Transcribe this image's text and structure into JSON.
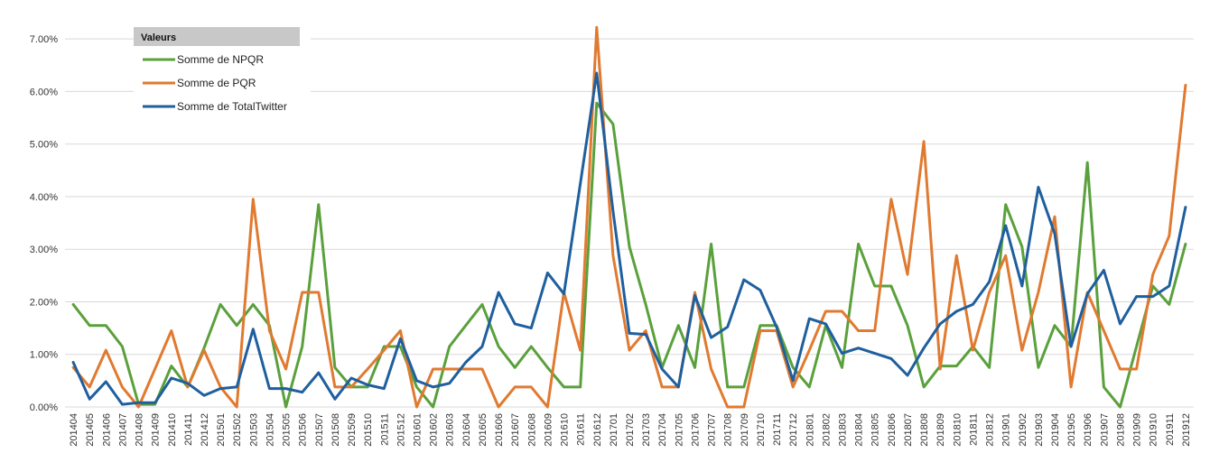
{
  "chart_data": {
    "type": "line",
    "y_format": "percent_2dp",
    "ylim": [
      0,
      7.5
    ],
    "y_ticks": [
      "0.00%",
      "1.00%",
      "2.00%",
      "3.00%",
      "4.00%",
      "5.00%",
      "6.00%",
      "7.00%"
    ],
    "y_tick_values": [
      0,
      1,
      2,
      3,
      4,
      5,
      6,
      7
    ],
    "grid": true,
    "legend": {
      "title": "Valeurs",
      "placement": "top-left"
    },
    "categories": [
      "201404",
      "201405",
      "201406",
      "201407",
      "201408",
      "201409",
      "201410",
      "201411",
      "201412",
      "201501",
      "201502",
      "201503",
      "201504",
      "201505",
      "201506",
      "201507",
      "201508",
      "201509",
      "201510",
      "201511",
      "201512",
      "201601",
      "201602",
      "201603",
      "201604",
      "201605",
      "201606",
      "201607",
      "201608",
      "201609",
      "201610",
      "201611",
      "201612",
      "201701",
      "201702",
      "201703",
      "201704",
      "201705",
      "201706",
      "201707",
      "201708",
      "201709",
      "201710",
      "201711",
      "201712",
      "201801",
      "201802",
      "201803",
      "201804",
      "201805",
      "201806",
      "201807",
      "201808",
      "201809",
      "201810",
      "201811",
      "201812",
      "201901",
      "201902",
      "201903",
      "201904",
      "201905",
      "201906",
      "201907",
      "201908",
      "201909",
      "201910",
      "201911",
      "201912"
    ],
    "series": [
      {
        "name": "Somme de NPQR",
        "color": "#5aa03c",
        "values": [
          1.95,
          1.55,
          1.55,
          1.15,
          0.05,
          0.05,
          0.78,
          0.38,
          1.12,
          1.95,
          1.55,
          1.95,
          1.55,
          0.0,
          1.15,
          3.85,
          0.75,
          0.38,
          0.38,
          1.15,
          1.15,
          0.38,
          0.0,
          1.15,
          1.55,
          1.95,
          1.15,
          0.75,
          1.15,
          0.75,
          0.38,
          0.38,
          5.78,
          5.38,
          3.05,
          1.95,
          0.75,
          1.55,
          0.75,
          3.1,
          0.38,
          0.38,
          1.55,
          1.55,
          0.75,
          0.38,
          1.55,
          0.75,
          3.1,
          2.3,
          2.3,
          1.55,
          0.38,
          0.78,
          0.78,
          1.15,
          0.75,
          3.85,
          3.05,
          0.75,
          1.55,
          1.15,
          4.65,
          0.38,
          0.0,
          1.15,
          2.3,
          1.95,
          3.1
        ]
      },
      {
        "name": "Somme de PQR",
        "color": "#e07a30",
        "values": [
          0.75,
          0.38,
          1.08,
          0.38,
          0.0,
          0.72,
          1.45,
          0.38,
          1.08,
          0.38,
          0.0,
          3.95,
          1.45,
          0.72,
          2.18,
          2.18,
          0.38,
          0.38,
          0.72,
          1.08,
          1.45,
          0.0,
          0.72,
          0.72,
          0.72,
          0.72,
          0.0,
          0.38,
          0.38,
          0.0,
          2.18,
          1.08,
          7.22,
          2.88,
          1.08,
          1.45,
          0.38,
          0.38,
          2.18,
          0.72,
          0.0,
          0.0,
          1.45,
          1.45,
          0.38,
          1.08,
          1.82,
          1.82,
          1.45,
          1.45,
          3.95,
          2.52,
          5.05,
          0.72,
          2.88,
          1.08,
          2.18,
          2.88,
          1.08,
          2.18,
          3.62,
          0.38,
          2.18,
          1.45,
          0.72,
          0.72,
          2.52,
          3.25,
          6.12
        ]
      },
      {
        "name": "Somme de TotalTwitter",
        "color": "#1f5f9e",
        "values": [
          0.85,
          0.15,
          0.48,
          0.05,
          0.08,
          0.08,
          0.55,
          0.45,
          0.22,
          0.35,
          0.38,
          1.48,
          0.35,
          0.35,
          0.28,
          0.65,
          0.15,
          0.55,
          0.42,
          0.35,
          1.3,
          0.5,
          0.38,
          0.45,
          0.85,
          1.15,
          2.18,
          1.58,
          1.5,
          2.55,
          2.15,
          4.25,
          6.35,
          3.72,
          1.4,
          1.38,
          0.72,
          0.38,
          2.12,
          1.32,
          1.52,
          2.42,
          2.22,
          1.52,
          0.5,
          1.68,
          1.58,
          1.02,
          1.12,
          1.02,
          0.92,
          0.6,
          1.12,
          1.58,
          1.82,
          1.95,
          2.38,
          3.45,
          2.3,
          4.18,
          3.3,
          1.15,
          2.15,
          2.6,
          1.58,
          2.1,
          2.1,
          2.3,
          3.8
        ]
      }
    ]
  }
}
